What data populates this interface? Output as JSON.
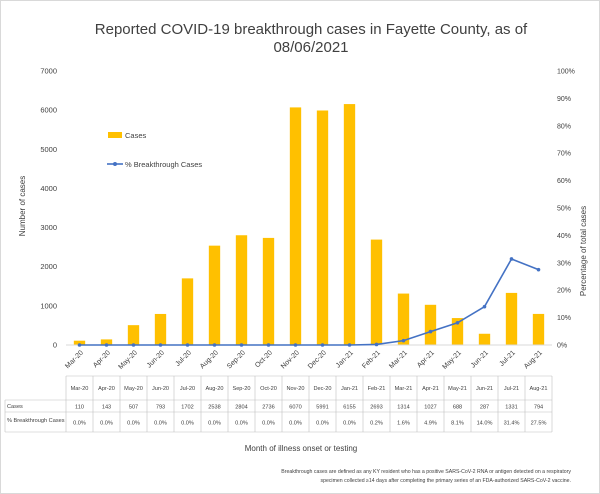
{
  "chart_data": {
    "type": "bar",
    "title_line1": "Reported COVID-19 breakthrough cases in Fayette County, as of",
    "title_line2": "08/06/2021",
    "xlabel": "Month of illness onset or testing",
    "ylabel": "Number of cases",
    "y2label": "Percentage of total cases",
    "ylim": [
      0,
      7000
    ],
    "y_ticks": [
      "0",
      "1000",
      "2000",
      "3000",
      "4000",
      "5000",
      "6000",
      "7000"
    ],
    "y2lim": [
      0,
      100
    ],
    "y2_ticks": [
      "0%",
      "10%",
      "20%",
      "30%",
      "40%",
      "50%",
      "60%",
      "70%",
      "80%",
      "90%",
      "100%"
    ],
    "categories": [
      "Mar-20",
      "Apr-20",
      "May-20",
      "Jun-20",
      "Jul-20",
      "Aug-20",
      "Sep-20",
      "Oct-20",
      "Nov-20",
      "Dec-20",
      "Jan-21",
      "Feb-21",
      "Mar-21",
      "Apr-21",
      "May-21",
      "Jun-21",
      "Jul-21",
      "Aug-21"
    ],
    "series": [
      {
        "name": "Cases",
        "type": "bar",
        "color": "#FFC000",
        "axis": "primary",
        "values": [
          110,
          143,
          507,
          793,
          1702,
          2538,
          2804,
          2736,
          6070,
          5991,
          6155,
          2693,
          1314,
          1027,
          688,
          287,
          1331,
          794
        ],
        "labels": [
          "110",
          "143",
          "507",
          "793",
          "1702",
          "2538",
          "2804",
          "2736",
          "6070",
          "5991",
          "6155",
          "2693",
          "1314",
          "1027",
          "688",
          "287",
          "1331",
          "794"
        ]
      },
      {
        "name": "% Breakthrough Cases",
        "type": "line",
        "color": "#4472C4",
        "axis": "secondary",
        "values": [
          0.0,
          0.0,
          0.0,
          0.0,
          0.0,
          0.0,
          0.0,
          0.0,
          0.0,
          0.0,
          0.0,
          0.2,
          1.6,
          4.9,
          8.1,
          14.0,
          31.4,
          27.5
        ],
        "labels": [
          "0.0%",
          "0.0%",
          "0.0%",
          "0.0%",
          "0.0%",
          "0.0%",
          "0.0%",
          "0.0%",
          "0.0%",
          "0.0%",
          "0.0%",
          "0.2%",
          "1.6%",
          "4.9%",
          "8.1%",
          "14.0%",
          "31.4%",
          "27.5%"
        ]
      }
    ],
    "table_row_labels": [
      "Cases",
      "% Breakthrough Cases"
    ],
    "legend_position": "upper-left",
    "grid": false,
    "footnote_line1": "Breakthrough cases are defined as any KY resident who has a positive SARS-CoV-2 RNA or antigen detected on a respiratory",
    "footnote_line2": "specimen collected ≥14 days after completing the primary series of an FDA-authorized SARS-CoV-2 vaccine."
  }
}
